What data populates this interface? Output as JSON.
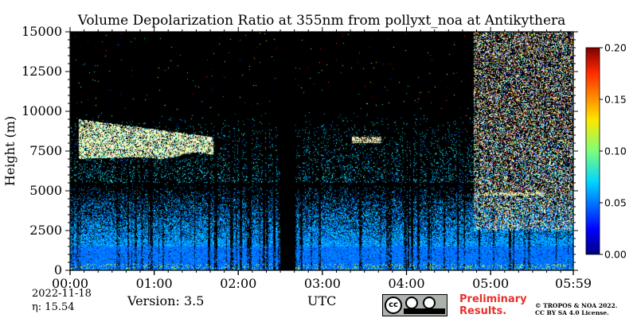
{
  "chart_data": {
    "type": "heatmap",
    "title": "Volume Depolarization Ratio at 355nm from pollyxt_noa at Antikythera",
    "xlabel": "UTC",
    "ylabel": "Height (m)",
    "x_tick_labels": [
      "00:00",
      "01:00",
      "02:00",
      "03:00",
      "04:00",
      "05:00",
      "05:59"
    ],
    "x_tick_hours": [
      0,
      1,
      2,
      3,
      4,
      5,
      5.9833
    ],
    "xlim_hours": [
      0,
      5.9833
    ],
    "y_ticks": [
      0,
      2500,
      5000,
      7500,
      10000,
      12500,
      15000
    ],
    "y_tick_labels": [
      "0",
      "2500",
      "5000",
      "7500",
      "10000",
      "12500",
      "15000"
    ],
    "ylim": [
      0,
      15000
    ],
    "colorbar": {
      "ticks": [
        0.0,
        0.05,
        0.1,
        0.15,
        0.2
      ],
      "tick_labels": [
        "0.00",
        "0.05",
        "0.10",
        "0.15",
        "0.20"
      ],
      "range": [
        0.0,
        0.2
      ],
      "colormap": "jet"
    },
    "features": {
      "high_cloud_layer_m": [
        7000,
        9500
      ],
      "high_cloud_hours": [
        0.1,
        1.7
      ],
      "small_cloud_hours": [
        3.35,
        3.7
      ],
      "small_cloud_height_m": [
        8000,
        8400
      ],
      "no_data_gap_hours": [
        2.5,
        2.68
      ],
      "boundary_layer_top_m": 1500,
      "noisy_region_start_hour": 4.8,
      "layer_near_5km_hours": [
        4.85,
        5.6
      ]
    }
  },
  "footer": {
    "date": "2022-11-18",
    "eta": "η:  15.54",
    "version": "Version: 3.5",
    "utc": "UTC",
    "preliminary_line1": "Preliminary",
    "preliminary_line2": "Results.",
    "copyright_line1": "© TROPOS & NOA 2022.",
    "copyright_line2": "CC BY SA 4.0 License.",
    "license_badge": [
      "cc",
      "BY",
      "SA"
    ]
  }
}
